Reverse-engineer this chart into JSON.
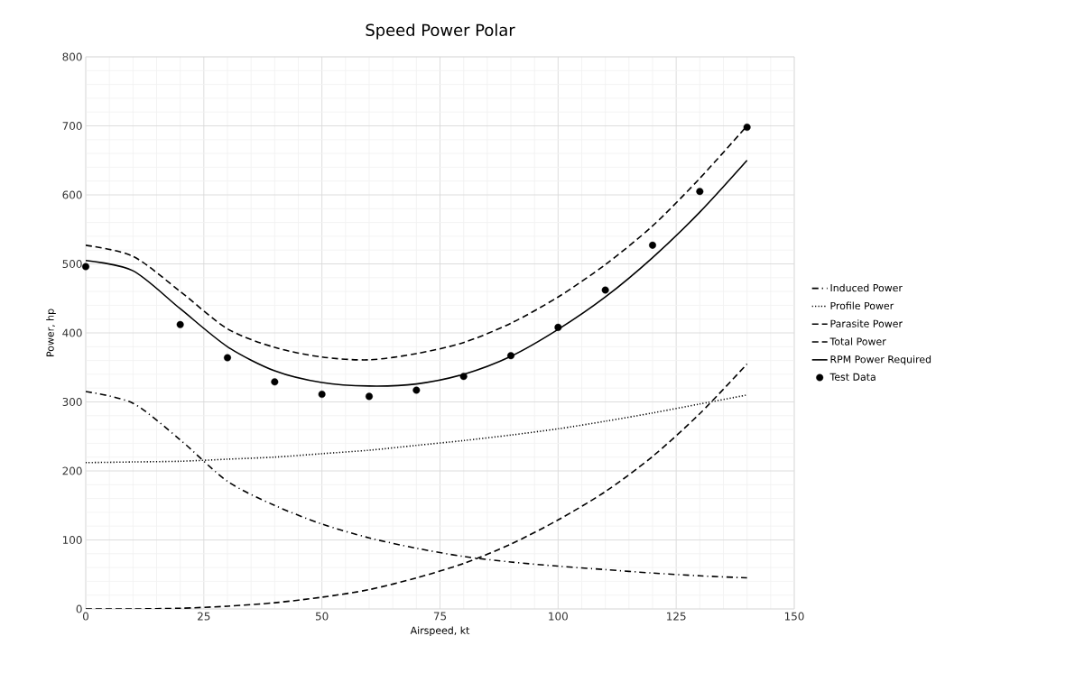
{
  "chart_data": {
    "type": "line",
    "title": "Speed Power Polar",
    "xlabel": "Airspeed, kt",
    "ylabel": "Power, hp",
    "xlim": [
      0,
      150
    ],
    "xticks": [
      0,
      25,
      50,
      75,
      100,
      125,
      150
    ],
    "ylim": [
      0,
      800
    ],
    "yticks": [
      0,
      100,
      200,
      300,
      400,
      500,
      600,
      700,
      800
    ],
    "grid": true,
    "legend": "right",
    "marker": "none",
    "x": [
      0,
      10,
      20,
      30,
      40,
      50,
      60,
      70,
      80,
      90,
      100,
      110,
      120,
      130,
      140
    ],
    "series": [
      {
        "name": "Induced Power",
        "color": "#000000",
        "line_style": "dashdot",
        "values": [
          315,
          298,
          245,
          185,
          150,
          123,
          103,
          88,
          76,
          68,
          62,
          57,
          52,
          48,
          45
        ]
      },
      {
        "name": "Profile Power",
        "color": "#000000",
        "line_style": "dotted",
        "values": [
          212,
          213,
          214,
          217,
          220,
          225,
          230,
          237,
          244,
          252,
          261,
          272,
          284,
          297,
          310
        ]
      },
      {
        "name": "Parasite Power",
        "color": "#000000",
        "line_style": "dashed",
        "values": [
          0,
          0,
          1,
          4,
          9,
          17,
          28,
          45,
          66,
          94,
          129,
          170,
          221,
          283,
          355
        ]
      },
      {
        "name": "Total Power",
        "color": "#000000",
        "line_style": "dashed",
        "values": [
          527,
          511,
          460,
          406,
          379,
          365,
          361,
          370,
          386,
          414,
          452,
          499,
          555,
          624,
          700
        ]
      },
      {
        "name": "RPM Power Required",
        "color": "#000000",
        "line_style": "solid",
        "values": [
          505,
          490,
          435,
          380,
          345,
          328,
          323,
          326,
          340,
          366,
          405,
          452,
          509,
          575,
          650
        ]
      },
      {
        "name": "Test Data",
        "type": "scatter",
        "color": "#000000",
        "marker": "circle",
        "x": [
          0,
          20,
          30,
          40,
          50,
          60,
          70,
          80,
          90,
          100,
          110,
          120,
          130,
          140
        ],
        "values": [
          496,
          412,
          364,
          329,
          311,
          308,
          317,
          337,
          367,
          408,
          462,
          527,
          605,
          698
        ]
      }
    ]
  }
}
